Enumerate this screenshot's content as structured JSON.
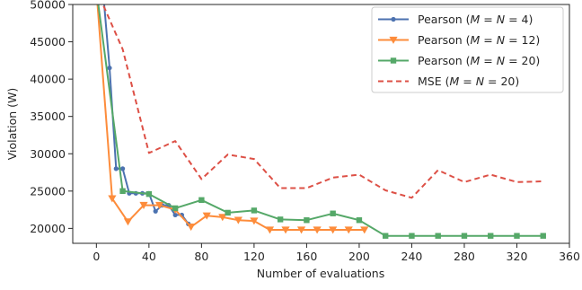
{
  "chart_data": {
    "type": "line",
    "xlabel": "Number of evaluations",
    "ylabel": "Violation (W)",
    "xlim": [
      -18,
      360
    ],
    "ylim": [
      18000,
      50000
    ],
    "xticks": [
      0,
      40,
      80,
      120,
      160,
      200,
      240,
      280,
      320,
      360
    ],
    "xtick_labels": [
      "0",
      "40",
      "80",
      "120",
      "160",
      "200",
      "240",
      "280",
      "320",
      "360"
    ],
    "yticks": [
      20000,
      25000,
      30000,
      35000,
      40000,
      45000,
      50000
    ],
    "ytick_labels": [
      "20000",
      "25000",
      "30000",
      "35000",
      "40000",
      "45000",
      "50000"
    ],
    "grid": false,
    "legend_position": "top-right",
    "series": [
      {
        "name": "Pearson (M = N = 4)",
        "legend_parts": [
          "Pearson (",
          "M",
          " = ",
          "N",
          " = 4)"
        ],
        "color": "#4c72b0",
        "linestyle": "solid",
        "marker": "circle",
        "x": [
          5,
          10,
          15,
          20,
          25,
          30,
          35,
          40,
          45,
          50,
          55,
          60,
          65,
          70
        ],
        "y": [
          52000,
          41500,
          28000,
          28000,
          24700,
          24700,
          24700,
          24700,
          22300,
          23100,
          23100,
          21800,
          21800,
          20600
        ]
      },
      {
        "name": "Pearson (M = N = 12)",
        "legend_parts": [
          "Pearson (",
          "M",
          " = ",
          "N",
          " = 12)"
        ],
        "color": "#fd8c3b",
        "linestyle": "solid",
        "marker": "triangle-down",
        "x": [
          0,
          12,
          24,
          36,
          48,
          60,
          72,
          84,
          96,
          108,
          120,
          132,
          144,
          156,
          168,
          180,
          192,
          204
        ],
        "y": [
          52000,
          24000,
          20900,
          23100,
          23100,
          22500,
          20200,
          21700,
          21500,
          21100,
          21000,
          19800,
          19800,
          19800,
          19800,
          19800,
          19800,
          19800
        ]
      },
      {
        "name": "Pearson (M = N = 20)",
        "legend_parts": [
          "Pearson (",
          "M",
          " = ",
          "N",
          " = 20)"
        ],
        "color": "#55a868",
        "linestyle": "solid",
        "marker": "square",
        "x": [
          0,
          20,
          40,
          60,
          80,
          100,
          120,
          140,
          160,
          180,
          200,
          220,
          240,
          260,
          280,
          300,
          320,
          340
        ],
        "y": [
          52000,
          25000,
          24600,
          22700,
          23800,
          22100,
          22400,
          21200,
          21100,
          22000,
          21100,
          19000,
          19000,
          19000,
          19000,
          19000,
          19000,
          19000
        ]
      },
      {
        "name": "MSE (M = N = 20)",
        "legend_parts": [
          "MSE (",
          "M",
          " = ",
          "N",
          " = 20)"
        ],
        "color": "#dd5046",
        "linestyle": "dashed",
        "marker": "none",
        "x": [
          0,
          20,
          40,
          60,
          80,
          100,
          120,
          140,
          160,
          180,
          200,
          220,
          240,
          260,
          280,
          300,
          320,
          340
        ],
        "y": [
          52000,
          44000,
          30100,
          31700,
          26600,
          29900,
          29300,
          25400,
          25400,
          26800,
          27200,
          25100,
          24100,
          27800,
          26200,
          27200,
          26200,
          26300
        ]
      }
    ]
  }
}
